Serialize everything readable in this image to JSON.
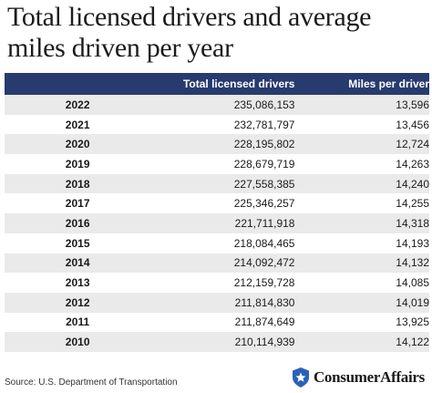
{
  "title": "Total licensed drivers and average miles driven per year",
  "table": {
    "headers": [
      "",
      "Total licensed drivers",
      "Miles per driver"
    ],
    "rows": [
      {
        "year": "2022",
        "drivers": "235,086,153",
        "miles": "13,596"
      },
      {
        "year": "2021",
        "drivers": "232,781,797",
        "miles": "13,456"
      },
      {
        "year": "2020",
        "drivers": "228,195,802",
        "miles": "12,724"
      },
      {
        "year": "2019",
        "drivers": "228,679,719",
        "miles": "14,263"
      },
      {
        "year": "2018",
        "drivers": "227,558,385",
        "miles": "14,240"
      },
      {
        "year": "2017",
        "drivers": "225,346,257",
        "miles": "14,255"
      },
      {
        "year": "2016",
        "drivers": "221,711,918",
        "miles": "14,318"
      },
      {
        "year": "2015",
        "drivers": "218,084,465",
        "miles": "14,193"
      },
      {
        "year": "2014",
        "drivers": "214,092,472",
        "miles": "14,132"
      },
      {
        "year": "2013",
        "drivers": "212,159,728",
        "miles": "14,085"
      },
      {
        "year": "2012",
        "drivers": "211,814,830",
        "miles": "14,019"
      },
      {
        "year": "2011",
        "drivers": "211,874,649",
        "miles": "13,925"
      },
      {
        "year": "2010",
        "drivers": "210,114,939",
        "miles": "14,122"
      }
    ]
  },
  "source": "Source: U.S. Department of Transportation",
  "logo": {
    "text": "ConsumerAffairs",
    "icon": "star-shield-icon"
  },
  "colors": {
    "header_bg": "#273b6e",
    "year_text": "#26407a",
    "stripe": "#eaeaea",
    "logo_blue": "#2a62b8"
  }
}
